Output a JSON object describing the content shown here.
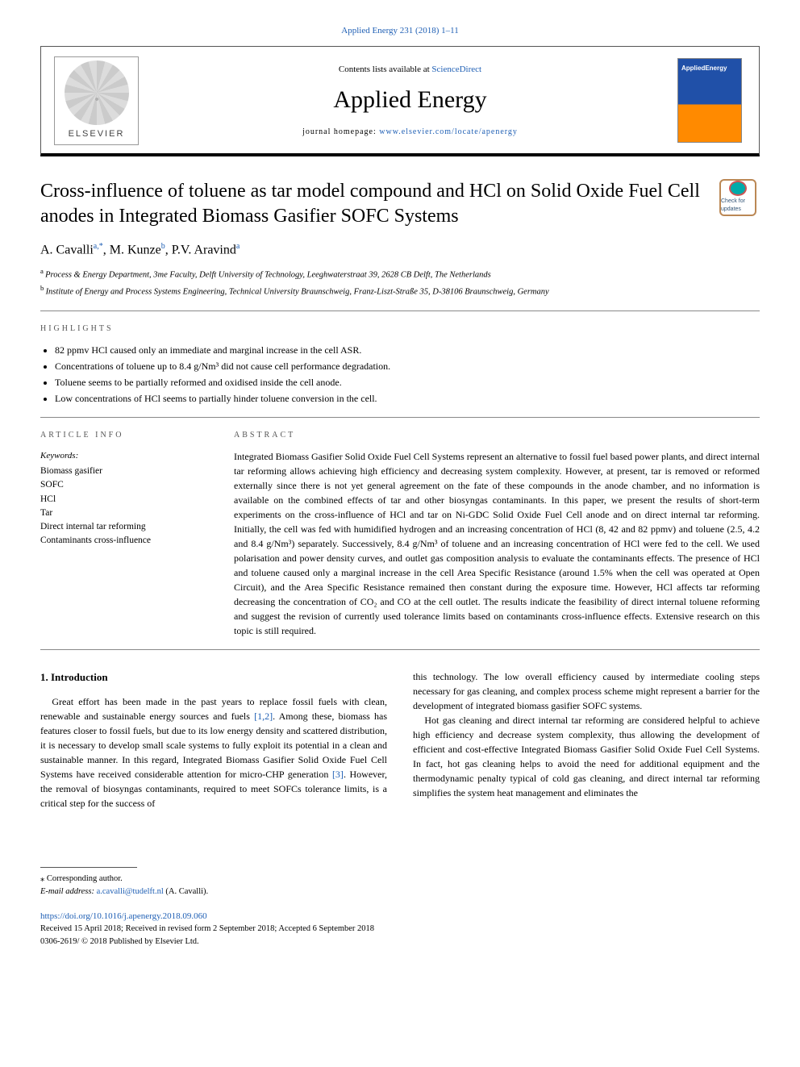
{
  "top_citation": "Applied Energy 231 (2018) 1–11",
  "header": {
    "contents_prefix": "Contents lists available at ",
    "contents_link": "ScienceDirect",
    "journal_name": "Applied Energy",
    "homepage_prefix": "journal homepage: ",
    "homepage_url": "www.elsevier.com/locate/apenergy",
    "publisher_name": "ELSEVIER",
    "cover_label": "AppliedEnergy"
  },
  "article": {
    "title": "Cross-influence of toluene as tar model compound and HCl on Solid Oxide Fuel Cell anodes in Integrated Biomass Gasifier SOFC Systems",
    "updates_label": "Check for updates",
    "authors_html": "A. Cavalli<sup>a,</sup>*<sup></sup>, M. Kunze<sup>b</sup>, P.V. Aravind<sup>a</sup>",
    "authors": [
      {
        "name": "A. Cavalli",
        "mark": "a,*"
      },
      {
        "name": "M. Kunze",
        "mark": "b"
      },
      {
        "name": "P.V. Aravind",
        "mark": "a"
      }
    ],
    "affiliations": [
      "Process & Energy Department, 3me Faculty, Delft University of Technology, Leeghwaterstraat 39, 2628 CB Delft, The Netherlands",
      "Institute of Energy and Process Systems Engineering, Technical University Braunschweig, Franz-Liszt-Straße 35, D-38106 Braunschweig, Germany"
    ],
    "affil_marks": [
      "a",
      "b"
    ]
  },
  "highlights": {
    "label": "HIGHLIGHTS",
    "items": [
      "82 ppmv HCl caused only an immediate and marginal increase in the cell ASR.",
      "Concentrations of toluene up to 8.4 g/Nm³ did not cause cell performance degradation.",
      "Toluene seems to be partially reformed and oxidised inside the cell anode.",
      "Low concentrations of HCl seems to partially hinder toluene conversion in the cell."
    ]
  },
  "article_info": {
    "label": "ARTICLE INFO",
    "keywords_label": "Keywords:",
    "keywords": [
      "Biomass gasifier",
      "SOFC",
      "HCl",
      "Tar",
      "Direct internal tar reforming",
      "Contaminants cross-influence"
    ]
  },
  "abstract": {
    "label": "ABSTRACT",
    "text": "Integrated Biomass Gasifier Solid Oxide Fuel Cell Systems represent an alternative to fossil fuel based power plants, and direct internal tar reforming allows achieving high efficiency and decreasing system complexity. However, at present, tar is removed or reformed externally since there is not yet general agreement on the fate of these compounds in the anode chamber, and no information is available on the combined effects of tar and other biosyngas contaminants. In this paper, we present the results of short-term experiments on the cross-influence of HCl and tar on Ni-GDC Solid Oxide Fuel Cell anode and on direct internal tar reforming. Initially, the cell was fed with humidified hydrogen and an increasing concentration of HCl (8, 42 and 82 ppmv) and toluene (2.5, 4.2 and 8.4 g/Nm³) separately. Successively, 8.4 g/Nm³ of toluene and an increasing concentration of HCl were fed to the cell. We used polarisation and power density curves, and outlet gas composition analysis to evaluate the contaminants effects. The presence of HCl and toluene caused only a marginal increase in the cell Area Specific Resistance (around 1.5% when the cell was operated at Open Circuit), and the Area Specific Resistance remained then constant during the exposure time. However, HCl affects tar reforming decreasing the concentration of CO₂ and CO at the cell outlet. The results indicate the feasibility of direct internal toluene reforming and suggest the revision of currently used tolerance limits based on contaminants cross-influence effects. Extensive research on this topic is still required."
  },
  "body": {
    "intro_heading": "1. Introduction",
    "col1_p1": "Great effort has been made in the past years to replace fossil fuels with clean, renewable and sustainable energy sources and fuels [1,2]. Among these, biomass has features closer to fossil fuels, but due to its low energy density and scattered distribution, it is necessary to develop small scale systems to fully exploit its potential in a clean and sustainable manner. In this regard, Integrated Biomass Gasifier Solid Oxide Fuel Cell Systems have received considerable attention for micro-CHP generation [3]. However, the removal of biosyngas contaminants, required to meet SOFCs tolerance limits, is a critical step for the success of",
    "col2_p1": "this technology. The low overall efficiency caused by intermediate cooling steps necessary for gas cleaning, and complex process scheme might represent a barrier for the development of integrated biomass gasifier SOFC systems.",
    "col2_p2": "Hot gas cleaning and direct internal tar reforming are considered helpful to achieve high efficiency and decrease system complexity, thus allowing the development of efficient and cost-effective Integrated Biomass Gasifier Solid Oxide Fuel Cell Systems. In fact, hot gas cleaning helps to avoid the need for additional equipment and the thermodynamic penalty typical of cold gas cleaning, and direct internal tar reforming simplifies the system heat management and eliminates the"
  },
  "refs": {
    "r12": "[1,2]",
    "r3": "[3]"
  },
  "footer": {
    "corr": "⁎ Corresponding author.",
    "email_label": "E-mail address: ",
    "email": "a.cavalli@tudelft.nl",
    "email_author": " (A. Cavalli).",
    "doi": "https://doi.org/10.1016/j.apenergy.2018.09.060",
    "received": "Received 15 April 2018; Received in revised form 2 September 2018; Accepted 6 September 2018",
    "copyright": "0306-2619/ © 2018 Published by Elsevier Ltd."
  },
  "colors": {
    "link": "#2060b5",
    "rule": "#888888",
    "cover_top": "#2050a8",
    "cover_bottom": "#ff8a00"
  }
}
